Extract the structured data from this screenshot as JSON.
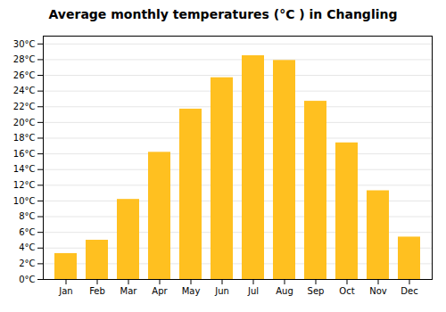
{
  "chart_data": {
    "type": "bar",
    "title": "Average monthly temperatures (°C ) in Changling",
    "categories": [
      "Jan",
      "Feb",
      "Mar",
      "Apr",
      "May",
      "Jun",
      "Jul",
      "Aug",
      "Sep",
      "Oct",
      "Nov",
      "Dec"
    ],
    "values": [
      3.3,
      5.0,
      10.2,
      16.2,
      21.7,
      25.7,
      28.5,
      27.9,
      22.7,
      17.4,
      11.3,
      5.4
    ],
    "color": "#FFC020",
    "ylim": [
      0,
      31
    ],
    "yticks": [
      {
        "value": 0,
        "label": "0°C"
      },
      {
        "value": 2,
        "label": "2°C"
      },
      {
        "value": 4,
        "label": "4°C"
      },
      {
        "value": 6,
        "label": "6°C"
      },
      {
        "value": 8,
        "label": "8°C"
      },
      {
        "value": 10,
        "label": "10°C"
      },
      {
        "value": 12,
        "label": "12°C"
      },
      {
        "value": 14,
        "label": "14°C"
      },
      {
        "value": 16,
        "label": "16°C"
      },
      {
        "value": 18,
        "label": "18°C"
      },
      {
        "value": 20,
        "label": "20°C"
      },
      {
        "value": 22,
        "label": "22°C"
      },
      {
        "value": 24,
        "label": "24°C"
      },
      {
        "value": 26,
        "label": "26°C"
      },
      {
        "value": 28,
        "label": "28°C"
      },
      {
        "value": 30,
        "label": "30°C"
      }
    ],
    "grid": true
  }
}
